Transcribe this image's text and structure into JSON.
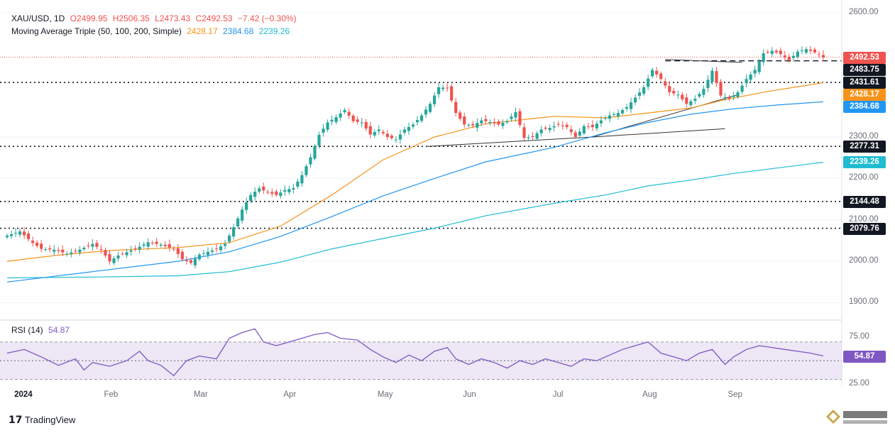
{
  "header": {
    "symbol": "XAU/USD, 1D",
    "open": "O2499.95",
    "high": "H2506.35",
    "low": "L2473.43",
    "close": "C2492.53",
    "change": "−7.42 (−0.30%)",
    "ma_label": "Moving Average Triple (50, 100, 200, Simple)",
    "ma50": "2428.17",
    "ma100": "2384.68",
    "ma200": "2239.26"
  },
  "rsi_header": {
    "label": "RSI (14)",
    "value": "54.87"
  },
  "colors": {
    "up": "#26a69a",
    "down": "#ef5350",
    "ma50": "#f7931a",
    "ma100": "#2196f3",
    "ma200": "#1fbcd2",
    "rsi": "#7e57c2",
    "rsi_band": "#ede7f6",
    "level": "#131722"
  },
  "chart_data": [
    {
      "type": "candlestick",
      "title": "XAU/USD, 1D",
      "x": [
        "2024",
        "Feb",
        "Mar",
        "Apr",
        "May",
        "Jun",
        "Jul",
        "Aug",
        "Sep"
      ],
      "ylim": [
        1870,
        2610
      ],
      "yticks": [
        "2600.00",
        "2300.00",
        "2200.00",
        "2100.00",
        "2000.00",
        "1900.00"
      ],
      "ytick_values": [
        2600,
        2300,
        2200,
        2100,
        2000,
        1900
      ],
      "close_path": [
        [
          0,
          2062
        ],
        [
          3,
          2072
        ],
        [
          6,
          2044
        ],
        [
          8,
          2030
        ],
        [
          11,
          2028
        ],
        [
          14,
          2018
        ],
        [
          17,
          2028
        ],
        [
          20,
          2042
        ],
        [
          22,
          2028
        ],
        [
          24,
          2000
        ],
        [
          26,
          2014
        ],
        [
          28,
          2022
        ],
        [
          30,
          2030
        ],
        [
          33,
          2046
        ],
        [
          36,
          2040
        ],
        [
          39,
          2030
        ],
        [
          41,
          2005
        ],
        [
          43,
          1996
        ],
        [
          45,
          2016
        ],
        [
          47,
          2023
        ],
        [
          49,
          2030
        ],
        [
          51,
          2042
        ],
        [
          53,
          2082
        ],
        [
          55,
          2125
        ],
        [
          57,
          2160
        ],
        [
          59,
          2176
        ],
        [
          61,
          2166
        ],
        [
          63,
          2160
        ],
        [
          65,
          2172
        ],
        [
          67,
          2177
        ],
        [
          69,
          2208
        ],
        [
          71,
          2251
        ],
        [
          73,
          2305
        ],
        [
          75,
          2335
        ],
        [
          77,
          2348
        ],
        [
          79,
          2365
        ],
        [
          81,
          2338
        ],
        [
          83,
          2335
        ],
        [
          85,
          2306
        ],
        [
          87,
          2318
        ],
        [
          89,
          2300
        ],
        [
          91,
          2294
        ],
        [
          93,
          2318
        ],
        [
          95,
          2330
        ],
        [
          97,
          2352
        ],
        [
          99,
          2380
        ],
        [
          101,
          2420
        ],
        [
          103,
          2418
        ],
        [
          105,
          2358
        ],
        [
          107,
          2330
        ],
        [
          109,
          2328
        ],
        [
          111,
          2340
        ],
        [
          113,
          2336
        ],
        [
          115,
          2330
        ],
        [
          117,
          2338
        ],
        [
          119,
          2360
        ],
        [
          121,
          2298
        ],
        [
          123,
          2300
        ],
        [
          125,
          2318
        ],
        [
          127,
          2322
        ],
        [
          129,
          2330
        ],
        [
          131,
          2324
        ],
        [
          133,
          2300
        ],
        [
          135,
          2326
        ],
        [
          137,
          2324
        ],
        [
          139,
          2340
        ],
        [
          141,
          2352
        ],
        [
          143,
          2358
        ],
        [
          145,
          2372
        ],
        [
          147,
          2395
        ],
        [
          149,
          2420
        ],
        [
          151,
          2462
        ],
        [
          153,
          2440
        ],
        [
          155,
          2408
        ],
        [
          157,
          2402
        ],
        [
          159,
          2380
        ],
        [
          161,
          2392
        ],
        [
          163,
          2416
        ],
        [
          165,
          2460
        ],
        [
          167,
          2400
        ],
        [
          169,
          2392
        ],
        [
          171,
          2408
        ],
        [
          173,
          2440
        ],
        [
          175,
          2462
        ],
        [
          177,
          2502
        ],
        [
          179,
          2508
        ],
        [
          181,
          2500
        ],
        [
          183,
          2485
        ],
        [
          185,
          2506
        ],
        [
          187,
          2512
        ],
        [
          189,
          2504
        ],
        [
          191,
          2492
        ]
      ],
      "ma50_path": [
        [
          0,
          2000
        ],
        [
          12,
          2015
        ],
        [
          24,
          2026
        ],
        [
          40,
          2033
        ],
        [
          52,
          2045
        ],
        [
          64,
          2085
        ],
        [
          76,
          2160
        ],
        [
          88,
          2245
        ],
        [
          100,
          2300
        ],
        [
          112,
          2332
        ],
        [
          128,
          2350
        ],
        [
          140,
          2346
        ],
        [
          150,
          2358
        ],
        [
          160,
          2370
        ],
        [
          168,
          2390
        ],
        [
          178,
          2410
        ],
        [
          191,
          2431
        ]
      ],
      "ma100_path": [
        [
          0,
          1950
        ],
        [
          20,
          1975
        ],
        [
          40,
          2000
        ],
        [
          52,
          2023
        ],
        [
          64,
          2060
        ],
        [
          76,
          2108
        ],
        [
          88,
          2158
        ],
        [
          100,
          2200
        ],
        [
          112,
          2240
        ],
        [
          128,
          2275
        ],
        [
          140,
          2310
        ],
        [
          150,
          2335
        ],
        [
          160,
          2355
        ],
        [
          170,
          2368
        ],
        [
          180,
          2377
        ],
        [
          191,
          2385
        ]
      ],
      "ma200_path": [
        [
          0,
          1960
        ],
        [
          20,
          1962
        ],
        [
          40,
          1965
        ],
        [
          52,
          1975
        ],
        [
          64,
          1998
        ],
        [
          76,
          2030
        ],
        [
          88,
          2055
        ],
        [
          100,
          2080
        ],
        [
          112,
          2110
        ],
        [
          128,
          2140
        ],
        [
          140,
          2160
        ],
        [
          150,
          2182
        ],
        [
          160,
          2196
        ],
        [
          170,
          2212
        ],
        [
          180,
          2225
        ],
        [
          191,
          2239
        ]
      ],
      "levels": [
        {
          "value": 2492.53,
          "label": "2492.53",
          "style": "price"
        },
        {
          "value": 2483.75,
          "label": "2483.75",
          "style": "dashed"
        },
        {
          "value": 2431.61,
          "label": "2431.61",
          "style": "dotted"
        },
        {
          "value": 2428.17,
          "label": "2428.17",
          "style": "ma50"
        },
        {
          "value": 2384.68,
          "label": "2384.68",
          "style": "ma100"
        },
        {
          "value": 2277.31,
          "label": "2277.31",
          "style": "dotted"
        },
        {
          "value": 2239.26,
          "label": "2239.26",
          "style": "ma200"
        },
        {
          "value": 2144.48,
          "label": "2144.48",
          "style": "dotted"
        },
        {
          "value": 2079.76,
          "label": "2079.76",
          "style": "dotted"
        }
      ],
      "trendlines": [
        [
          [
            98,
            2277
          ],
          [
            137,
            2300
          ],
          [
            168,
            2320
          ]
        ],
        [
          [
            137,
            2300
          ],
          [
            171,
            2402
          ]
        ],
        [
          [
            154,
            2487
          ],
          [
            172,
            2480
          ]
        ]
      ]
    },
    {
      "type": "line",
      "title": "RSI (14)",
      "ylim": [
        22,
        88
      ],
      "yticks": [
        "75.00",
        "25.00"
      ],
      "ytick_values": [
        75,
        25
      ],
      "band": [
        30,
        70
      ],
      "midline": 50,
      "last": 54.87,
      "rsi_path": [
        [
          0,
          58
        ],
        [
          4,
          62
        ],
        [
          8,
          54
        ],
        [
          12,
          45
        ],
        [
          16,
          52
        ],
        [
          18,
          40
        ],
        [
          20,
          48
        ],
        [
          24,
          44
        ],
        [
          28,
          50
        ],
        [
          31,
          60
        ],
        [
          33,
          50
        ],
        [
          36,
          45
        ],
        [
          39,
          34
        ],
        [
          42,
          50
        ],
        [
          45,
          55
        ],
        [
          49,
          52
        ],
        [
          52,
          74
        ],
        [
          55,
          80
        ],
        [
          58,
          84
        ],
        [
          60,
          70
        ],
        [
          63,
          66
        ],
        [
          66,
          70
        ],
        [
          69,
          74
        ],
        [
          72,
          78
        ],
        [
          75,
          80
        ],
        [
          78,
          74
        ],
        [
          82,
          72
        ],
        [
          85,
          62
        ],
        [
          88,
          54
        ],
        [
          91,
          48
        ],
        [
          94,
          56
        ],
        [
          97,
          50
        ],
        [
          100,
          60
        ],
        [
          103,
          64
        ],
        [
          105,
          52
        ],
        [
          108,
          46
        ],
        [
          111,
          52
        ],
        [
          114,
          48
        ],
        [
          117,
          42
        ],
        [
          120,
          50
        ],
        [
          123,
          46
        ],
        [
          126,
          52
        ],
        [
          129,
          48
        ],
        [
          132,
          44
        ],
        [
          135,
          52
        ],
        [
          138,
          50
        ],
        [
          141,
          56
        ],
        [
          144,
          62
        ],
        [
          147,
          66
        ],
        [
          150,
          70
        ],
        [
          153,
          58
        ],
        [
          156,
          54
        ],
        [
          159,
          50
        ],
        [
          162,
          58
        ],
        [
          165,
          62
        ],
        [
          168,
          46
        ],
        [
          170,
          54
        ],
        [
          173,
          62
        ],
        [
          176,
          66
        ],
        [
          179,
          64
        ],
        [
          182,
          62
        ],
        [
          185,
          60
        ],
        [
          188,
          58
        ],
        [
          191,
          55
        ]
      ]
    }
  ]
}
